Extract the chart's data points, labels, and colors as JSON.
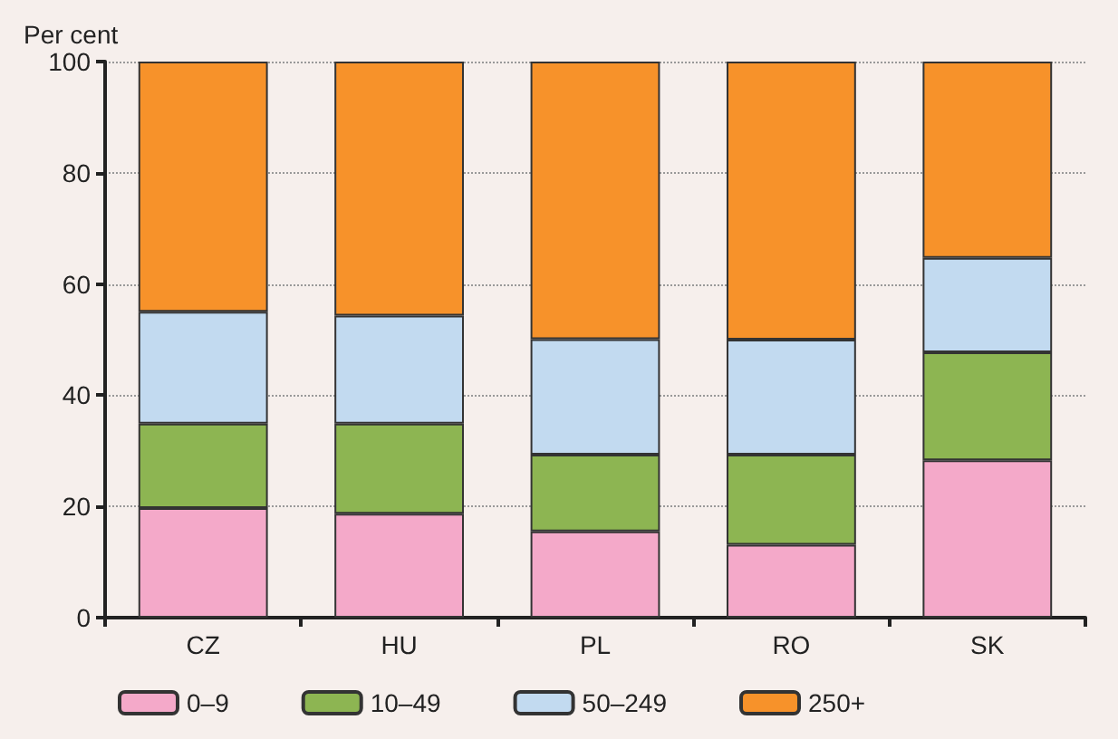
{
  "chart_data": {
    "type": "bar",
    "stacked": true,
    "ylabel": "Per cent",
    "categories": [
      "CZ",
      "HU",
      "PL",
      "RO",
      "SK"
    ],
    "series": [
      {
        "name": "0–9",
        "color": "#f4a9c9",
        "values": [
          19.7,
          18.7,
          15.5,
          13.1,
          28.3
        ]
      },
      {
        "name": "10–49",
        "color": "#8db552",
        "values": [
          15.2,
          16.2,
          13.8,
          16.2,
          19.4
        ]
      },
      {
        "name": "50–249",
        "color": "#c2daf0",
        "values": [
          20.1,
          19.4,
          20.8,
          20.7,
          17.0
        ]
      },
      {
        "name": "250+",
        "color": "#f7922a",
        "values": [
          45.0,
          45.7,
          49.9,
          50.0,
          35.3
        ]
      }
    ],
    "ylim": [
      0,
      100
    ],
    "yticks": [
      0,
      20,
      40,
      60,
      80,
      100
    ],
    "grid": "y",
    "legend": "bottom"
  }
}
